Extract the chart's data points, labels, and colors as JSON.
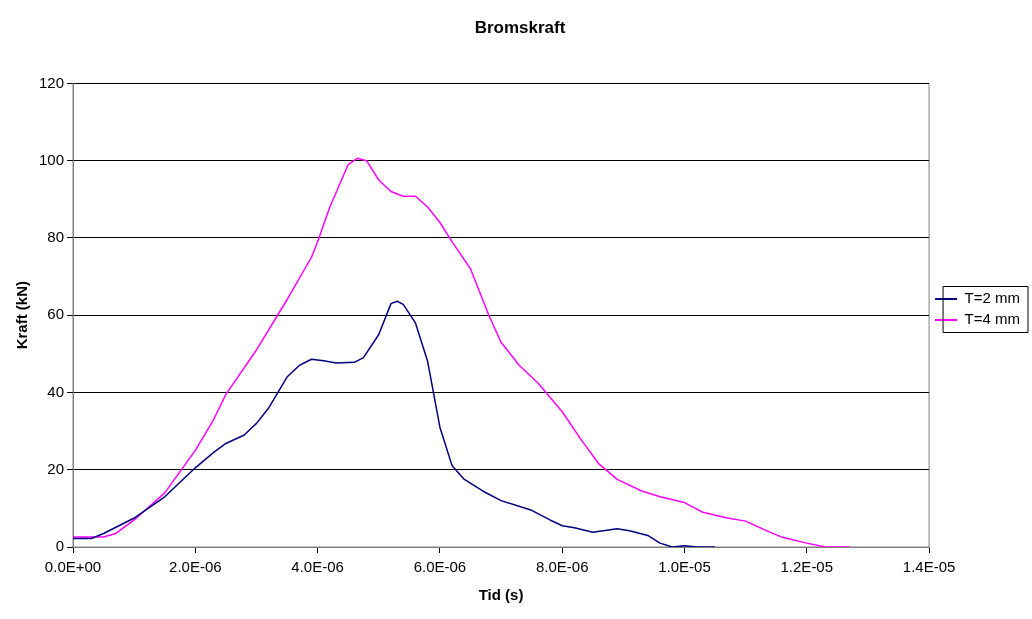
{
  "chart_data": {
    "type": "line",
    "title": "Bromskraft",
    "xlabel": "Tid (s)",
    "ylabel": "Kraft (kN)",
    "xlim": [
      0,
      1.4e-05
    ],
    "xticks": [
      {
        "value": 0,
        "label": "0.0E+00"
      },
      {
        "value": 2e-06,
        "label": "2.0E-06"
      },
      {
        "value": 4e-06,
        "label": "4.0E-06"
      },
      {
        "value": 6e-06,
        "label": "6.0E-06"
      },
      {
        "value": 8e-06,
        "label": "8.0E-06"
      },
      {
        "value": 1e-05,
        "label": "1.0E-05"
      },
      {
        "value": 1.2e-05,
        "label": "1.2E-05"
      },
      {
        "value": 1.4e-05,
        "label": "1.4E-05"
      }
    ],
    "ylim": [
      0,
      120
    ],
    "yticks": [
      0,
      20,
      40,
      60,
      80,
      100,
      120
    ],
    "grid": "y",
    "legend": "right",
    "marker": "none",
    "line_style": "solid",
    "series": [
      {
        "name": "T=2 mm",
        "color": "#000080",
        "x": [
          0,
          3e-07,
          5e-07,
          1e-06,
          1.5e-06,
          2e-06,
          2.3e-06,
          2.5e-06,
          2.8e-06,
          3e-06,
          3.2e-06,
          3.5e-06,
          3.7e-06,
          3.9e-06,
          4.1e-06,
          4.3e-06,
          4.6e-06,
          4.75e-06,
          5e-06,
          5.2e-06,
          5.3e-06,
          5.4e-06,
          5.6e-06,
          5.8e-06,
          6e-06,
          6.2e-06,
          6.4e-06,
          6.7e-06,
          7e-06,
          7.5e-06,
          7.8e-06,
          8e-06,
          8.2e-06,
          8.5e-06,
          8.9e-06,
          9.1e-06,
          9.4e-06,
          9.6e-06,
          9.8e-06,
          1e-05,
          1.02e-05,
          1.05e-05
        ],
        "values": [
          2.2,
          2.2,
          3.5,
          7.5,
          13,
          20.5,
          24.5,
          26.8,
          29,
          32,
          36,
          44,
          47,
          48.6,
          48.2,
          47.6,
          47.8,
          49,
          55,
          63,
          63.6,
          62.8,
          58,
          48,
          31,
          21,
          17.5,
          14.5,
          12,
          9.5,
          7,
          5.5,
          5,
          3.8,
          4.7,
          4.2,
          3,
          1,
          0,
          0.3,
          0,
          0
        ]
      },
      {
        "name": "T=4 mm",
        "color": "#ff00ff",
        "x": [
          0,
          5e-07,
          7e-07,
          1e-06,
          1.5e-06,
          2e-06,
          2.3e-06,
          2.5e-06,
          3e-06,
          3.5e-06,
          3.9e-06,
          4e-06,
          4.2e-06,
          4.5e-06,
          4.65e-06,
          4.8e-06,
          5e-06,
          5.2e-06,
          5.4e-06,
          5.6e-06,
          5.8e-06,
          6e-06,
          6.2e-06,
          6.5e-06,
          6.8e-06,
          7e-06,
          7.3e-06,
          7.6e-06,
          8e-06,
          8.3e-06,
          8.6e-06,
          8.9e-06,
          9.3e-06,
          9.6e-06,
          1e-05,
          1.03e-05,
          1.07e-05,
          1.1e-05,
          1.13e-05,
          1.16e-05,
          1.2e-05,
          1.23e-05,
          1.27e-05
        ],
        "values": [
          2.6,
          2.6,
          3.5,
          7,
          14,
          25,
          33,
          39.5,
          51,
          64,
          75,
          79,
          88,
          99,
          100.6,
          100,
          95,
          92,
          90.8,
          90.8,
          88,
          84,
          79,
          72,
          60,
          53,
          47,
          42.5,
          35,
          28,
          21.5,
          17.5,
          14.5,
          13,
          11.5,
          9,
          7.5,
          6.7,
          4.5,
          2.5,
          1,
          0,
          0
        ]
      }
    ]
  }
}
